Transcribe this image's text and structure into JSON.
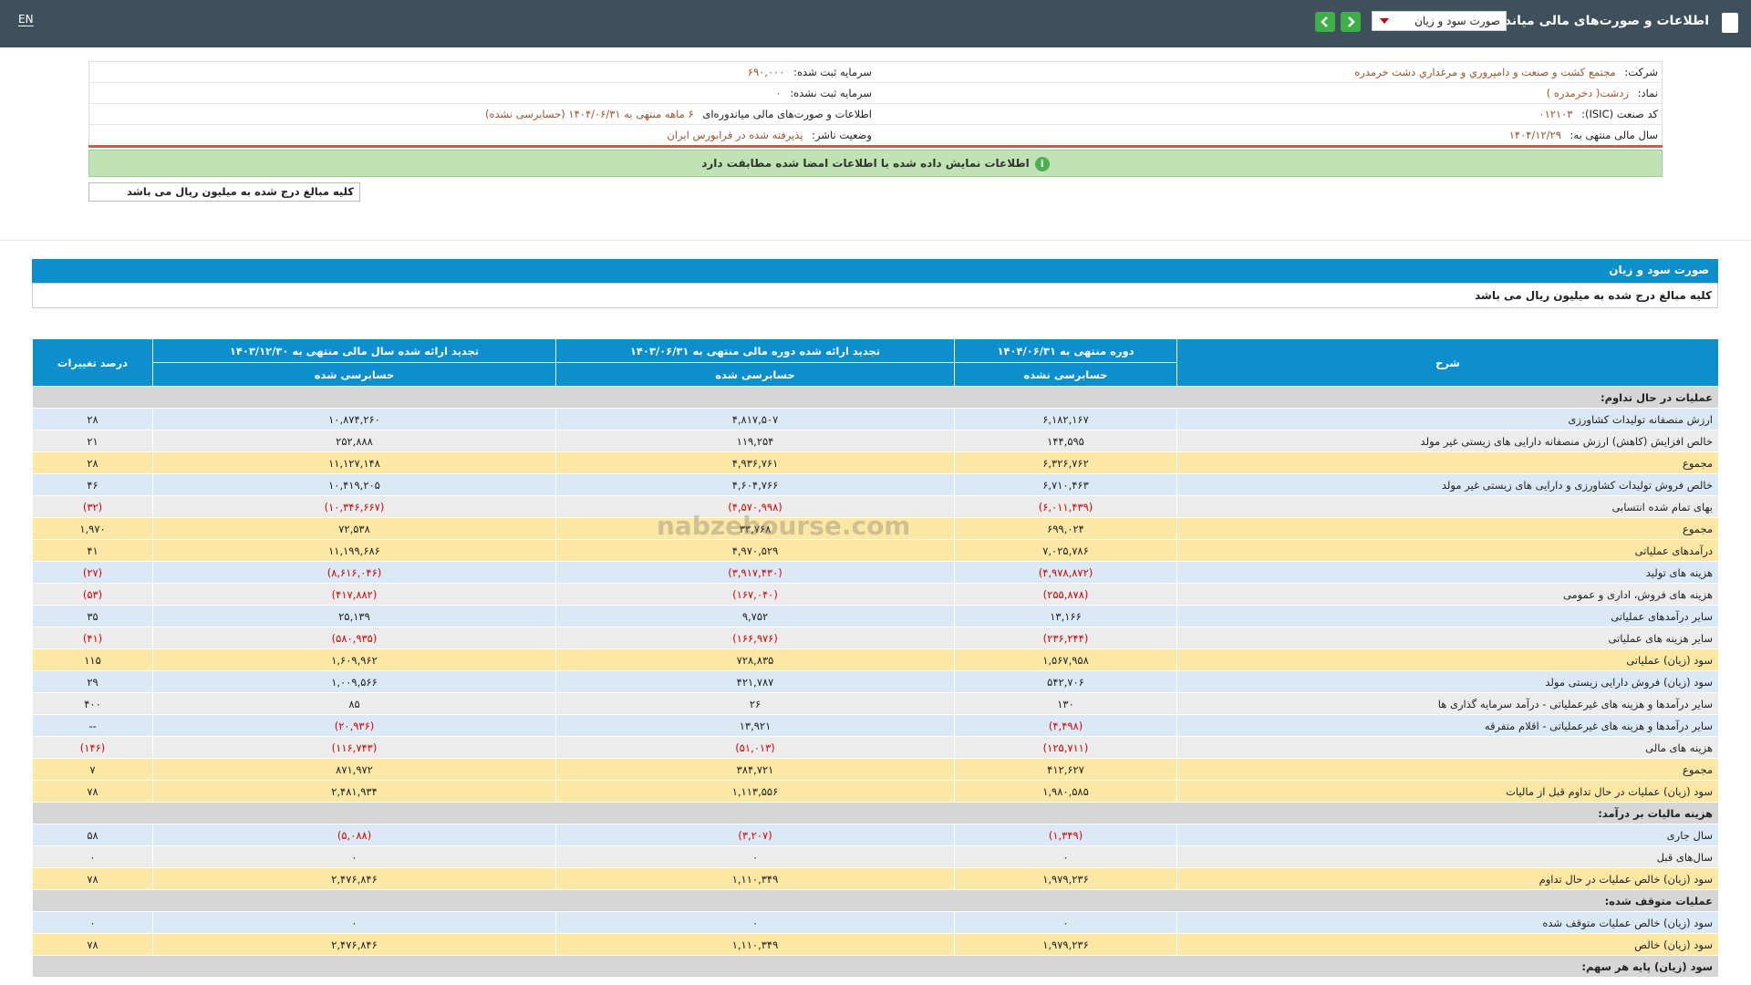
{
  "topbar": {
    "title": "اطلاعات و صورت‌های مالی میاندوره‌ای",
    "select": "صورت سود و زیان",
    "lang": "EN"
  },
  "info": [
    [
      {
        "label": "شرکت:",
        "value": "مجتمع کشت و صنعت و دامپروري و مرغداري دشت خرمدره"
      },
      {
        "label": "سرمایه ثبت شده:",
        "value": "۶۹۰,۰۰۰"
      }
    ],
    [
      {
        "label": "نماد:",
        "value": "زدشت( دخرمدره )"
      },
      {
        "label": "سرمایه ثبت نشده:",
        "value": "۰"
      }
    ],
    [
      {
        "label": "کد صنعت (ISIC):",
        "value": "۰۱۲۱۰۳"
      },
      {
        "label": "اطلاعات و صورت‌های مالی میاندوره‌ای",
        "value": "۶ ماهه منتهی به ۱۴۰۴/۰۶/۳۱ (حسابرسی نشده)"
      }
    ],
    [
      {
        "label": "سال مالی منتهی به:",
        "value": "۱۴۰۴/۱۲/۲۹"
      },
      {
        "label": "وضعیت ناشر:",
        "value": "پذیرفته شده در فرابورس ایران"
      }
    ]
  ],
  "notice": "اطلاعات نمایش داده شده با اطلاعات امضا شده مطابقت دارد",
  "unit_box": "کلیه مبالغ درج شده به میلیون ریال می باشد",
  "section_title": "صورت سود و زیان",
  "section_note": "کلیه مبالغ درج شده به میلیون ریال می باشد",
  "watermark": "nabzebourse.com",
  "table": {
    "headers": [
      "شرح",
      "دوره منتهی به ۱۴۰۴/۰۶/۳۱",
      "تجدید ارائه شده دوره مالی منتهی به ۱۴۰۳/۰۶/۳۱",
      "تجدید ارائه شده سال مالی منتهی به ۱۴۰۳/۱۲/۳۰",
      "درصد تغییرات"
    ],
    "subheaders": [
      "حسابرسی نشده",
      "حسابرسی شده",
      "حسابرسی شده"
    ],
    "rows": [
      {
        "kind": "section",
        "cells": [
          "عملیات در حال تداوم:"
        ]
      },
      {
        "kind": "row",
        "cells": [
          "ارزش منصفانه تولیدات کشاورزی",
          "۶,۱۸۲,۱۶۷",
          "۴,۸۱۷,۵۰۷",
          "۱۰,۸۷۴,۲۶۰",
          "۲۸"
        ]
      },
      {
        "kind": "row",
        "cells": [
          "خالص افزایش (کاهش) ارزش منصفانه دارایی های زیستی غیر مولد",
          "۱۴۴,۵۹۵",
          "۱۱۹,۲۵۴",
          "۲۵۲,۸۸۸",
          "۲۱"
        ]
      },
      {
        "kind": "total",
        "cells": [
          "مجموع",
          "۶,۳۲۶,۷۶۲",
          "۴,۹۳۶,۷۶۱",
          "۱۱,۱۲۷,۱۴۸",
          "۲۸"
        ]
      },
      {
        "kind": "row",
        "cells": [
          "خالص فروش تولیدات کشاورزی و دارایی های زیستی غیر مولد",
          "۶,۷۱۰,۴۶۳",
          "۴,۶۰۴,۷۶۶",
          "۱۰,۴۱۹,۲۰۵",
          "۴۶"
        ]
      },
      {
        "kind": "row",
        "cells": [
          "بهای تمام شده انتسابی",
          "(۶,۰۱۱,۴۳۹)",
          "(۴,۵۷۰,۹۹۸)",
          "(۱۰,۳۴۶,۶۶۷)",
          "(۳۲)"
        ]
      },
      {
        "kind": "total",
        "cells": [
          "مجموع",
          "۶۹۹,۰۲۴",
          "۳۳,۷۶۸",
          "۷۲,۵۳۸",
          "۱,۹۷۰"
        ]
      },
      {
        "kind": "total",
        "cells": [
          "درآمدهای عملیاتی",
          "۷,۰۲۵,۷۸۶",
          "۴,۹۷۰,۵۲۹",
          "۱۱,۱۹۹,۶۸۶",
          "۴۱"
        ]
      },
      {
        "kind": "row",
        "cells": [
          "هزینه های تولید",
          "(۴,۹۷۸,۸۷۲)",
          "(۳,۹۱۷,۴۳۰)",
          "(۸,۶۱۶,۰۴۶)",
          "(۲۷)"
        ]
      },
      {
        "kind": "row",
        "cells": [
          "هزینه های فروش، اداری و عمومی",
          "(۲۵۵,۸۷۸)",
          "(۱۶۷,۰۴۰)",
          "(۴۱۷,۸۸۲)",
          "(۵۳)"
        ]
      },
      {
        "kind": "row",
        "cells": [
          "سایر درآمدهای عملیاتی",
          "۱۳,۱۶۶",
          "۹,۷۵۲",
          "۲۵,۱۳۹",
          "۳۵"
        ]
      },
      {
        "kind": "row",
        "cells": [
          "سایر هزینه های عملیاتی",
          "(۲۳۶,۲۴۴)",
          "(۱۶۶,۹۷۶)",
          "(۵۸۰,۹۳۵)",
          "(۴۱)"
        ]
      },
      {
        "kind": "total",
        "cells": [
          "سود (زیان) عملیاتی",
          "۱,۵۶۷,۹۵۸",
          "۷۲۸,۸۳۵",
          "۱,۶۰۹,۹۶۲",
          "۱۱۵"
        ]
      },
      {
        "kind": "row",
        "cells": [
          "سود (زیان) فروش دارایی زیستی مولد",
          "۵۴۲,۷۰۶",
          "۴۲۱,۷۸۷",
          "۱,۰۰۹,۵۶۶",
          "۲۹"
        ]
      },
      {
        "kind": "row",
        "cells": [
          "سایر درآمدها و هزینه های غیرعملیاتی - درآمد سرمایه گذاری ها",
          "۱۳۰",
          "۲۶",
          "۸۵",
          "۴۰۰"
        ]
      },
      {
        "kind": "row",
        "cells": [
          "سایر درآمدها و هزینه های غیرعملیاتی - اقلام متفرقه",
          "(۴,۴۹۸)",
          "۱۳,۹۲۱",
          "(۲۰,۹۳۶)",
          "--"
        ]
      },
      {
        "kind": "row",
        "cells": [
          "هزینه های مالی",
          "(۱۲۵,۷۱۱)",
          "(۵۱,۰۱۳)",
          "(۱۱۶,۷۴۳)",
          "(۱۴۶)"
        ]
      },
      {
        "kind": "total",
        "cells": [
          "مجموع",
          "۴۱۲,۶۲۷",
          "۳۸۴,۷۲۱",
          "۸۷۱,۹۷۲",
          "۷"
        ]
      },
      {
        "kind": "total",
        "cells": [
          "سود (زیان) عملیات در حال تداوم قبل از مالیات",
          "۱,۹۸۰,۵۸۵",
          "۱,۱۱۳,۵۵۶",
          "۲,۴۸۱,۹۳۴",
          "۷۸"
        ]
      },
      {
        "kind": "section",
        "cells": [
          "هزینه مالیات بر درآمد:"
        ]
      },
      {
        "kind": "row",
        "cells": [
          "سال جاری",
          "(۱,۳۴۹)",
          "(۳,۲۰۷)",
          "(۵,۰۸۸)",
          "۵۸"
        ]
      },
      {
        "kind": "row",
        "cells": [
          "سال‌های قبل",
          "۰",
          "۰",
          "۰",
          "۰"
        ]
      },
      {
        "kind": "total",
        "cells": [
          "سود (زیان) خالص عملیات در حال تداوم",
          "۱,۹۷۹,۲۳۶",
          "۱,۱۱۰,۳۴۹",
          "۲,۴۷۶,۸۴۶",
          "۷۸"
        ]
      },
      {
        "kind": "section",
        "cells": [
          "عملیات متوقف شده:"
        ]
      },
      {
        "kind": "row",
        "cells": [
          "سود (زیان) خالص عملیات متوقف شده",
          "۰",
          "۰",
          "۰",
          "۰"
        ]
      },
      {
        "kind": "total",
        "cells": [
          "سود (زیان) خالص",
          "۱,۹۷۹,۲۳۶",
          "۱,۱۱۰,۳۴۹",
          "۲,۴۷۶,۸۴۶",
          "۷۸"
        ]
      },
      {
        "kind": "section",
        "cells": [
          "سود (زیان) پایه هر سهم:"
        ]
      }
    ]
  }
}
